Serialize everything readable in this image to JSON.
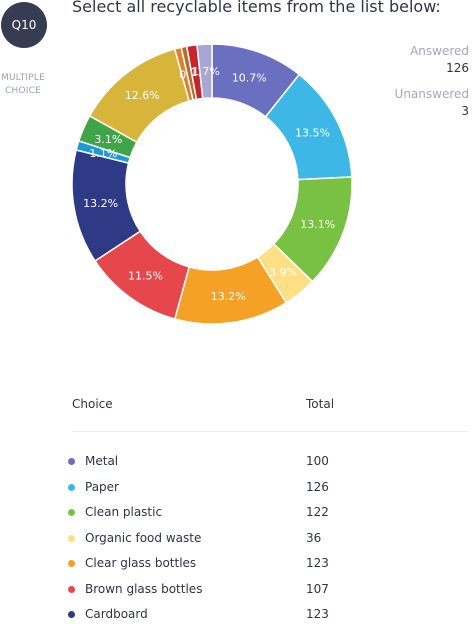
{
  "question": {
    "number": "Q10",
    "type_line1": "MULTIPLE",
    "type_line2": "CHOICE",
    "text": "Select all recyclable items from the list below:"
  },
  "stats": {
    "answered_label": "Answered",
    "answered_value": "126",
    "unanswered_label": "Unanswered",
    "unanswered_value": "3"
  },
  "table": {
    "col_choice": "Choice",
    "col_total": "Total"
  },
  "chart_data": {
    "type": "pie",
    "variant": "donut",
    "slices": [
      {
        "label": "Metal",
        "value": 100,
        "percent_label": "10.7%",
        "color": "#6a6fbf"
      },
      {
        "label": "Paper",
        "value": 126,
        "percent_label": "13.5%",
        "color": "#3db8e6"
      },
      {
        "label": "Clean plastic",
        "value": 122,
        "percent_label": "13.1%",
        "color": "#79c143"
      },
      {
        "label": "Organic food waste",
        "value": 36,
        "percent_label": "3.9%",
        "color": "#fde084"
      },
      {
        "label": "Clear glass bottles",
        "value": 123,
        "percent_label": "13.2%",
        "color": "#f5a126"
      },
      {
        "label": "Brown glass bottles",
        "value": 107,
        "percent_label": "11.5%",
        "color": "#e5474d"
      },
      {
        "label": "Cardboard",
        "value": 123,
        "percent_label": "13.2%",
        "color": "#2e3a86"
      },
      {
        "label": "",
        "value": 10,
        "percent_label": "1.1%",
        "color": "#1f9bd3"
      },
      {
        "label": "",
        "value": 29,
        "percent_label": "3.1%",
        "color": "#3fa548"
      },
      {
        "label": "",
        "value": 118,
        "percent_label": "12.6%",
        "color": "#d7b43a"
      },
      {
        "label": "",
        "value": 7,
        "percent_label": "0.",
        "color": "#df7f2b"
      },
      {
        "label": "",
        "value": 6,
        "percent_label": "",
        "color": "#b56c2c"
      },
      {
        "label": "",
        "value": 11,
        "percent_label": "1.",
        "color": "#c7242b"
      },
      {
        "label": "",
        "value": 16,
        "percent_label": "1.7%",
        "color": "#a7a7d4"
      }
    ]
  }
}
